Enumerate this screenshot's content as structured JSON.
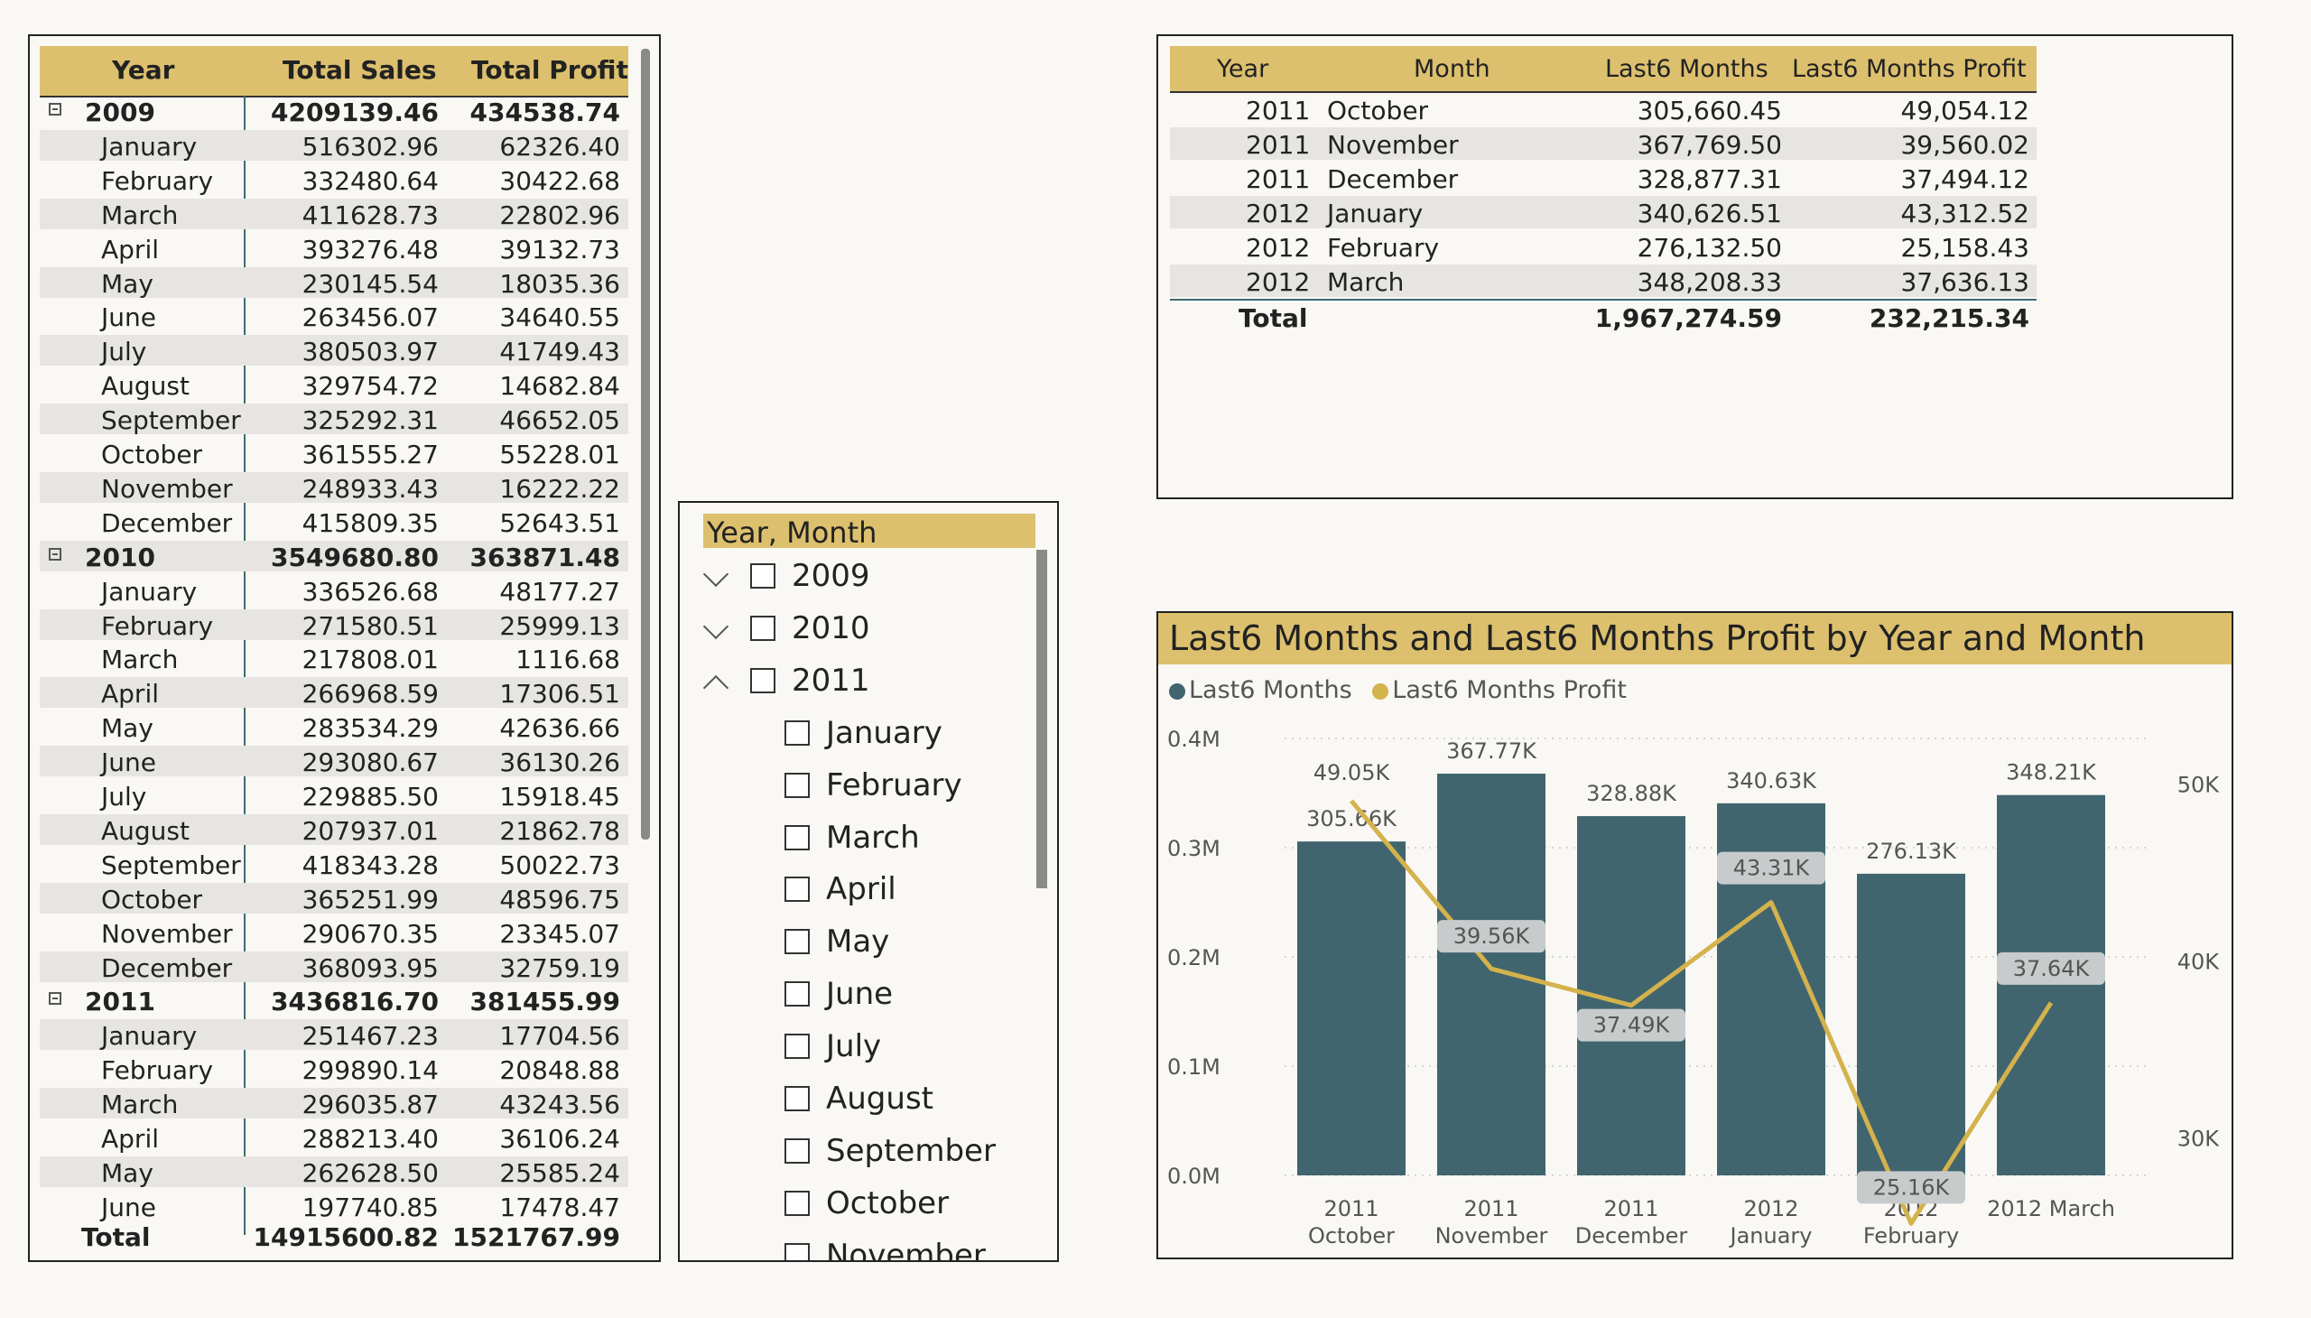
{
  "matrix": {
    "headers": [
      "Year",
      "Total Sales",
      "Total Profit"
    ],
    "groups": [
      {
        "year": "2009",
        "sales": "4209139.46",
        "profit": "434538.74",
        "months": [
          {
            "m": "January",
            "s": "516302.96",
            "p": "62326.40"
          },
          {
            "m": "February",
            "s": "332480.64",
            "p": "30422.68"
          },
          {
            "m": "March",
            "s": "411628.73",
            "p": "22802.96"
          },
          {
            "m": "April",
            "s": "393276.48",
            "p": "39132.73"
          },
          {
            "m": "May",
            "s": "230145.54",
            "p": "18035.36"
          },
          {
            "m": "June",
            "s": "263456.07",
            "p": "34640.55"
          },
          {
            "m": "July",
            "s": "380503.97",
            "p": "41749.43"
          },
          {
            "m": "August",
            "s": "329754.72",
            "p": "14682.84"
          },
          {
            "m": "September",
            "s": "325292.31",
            "p": "46652.05"
          },
          {
            "m": "October",
            "s": "361555.27",
            "p": "55228.01"
          },
          {
            "m": "November",
            "s": "248933.43",
            "p": "16222.22"
          },
          {
            "m": "December",
            "s": "415809.35",
            "p": "52643.51"
          }
        ]
      },
      {
        "year": "2010",
        "sales": "3549680.80",
        "profit": "363871.48",
        "months": [
          {
            "m": "January",
            "s": "336526.68",
            "p": "48177.27"
          },
          {
            "m": "February",
            "s": "271580.51",
            "p": "25999.13"
          },
          {
            "m": "March",
            "s": "217808.01",
            "p": "1116.68"
          },
          {
            "m": "April",
            "s": "266968.59",
            "p": "17306.51"
          },
          {
            "m": "May",
            "s": "283534.29",
            "p": "42636.66"
          },
          {
            "m": "June",
            "s": "293080.67",
            "p": "36130.26"
          },
          {
            "m": "July",
            "s": "229885.50",
            "p": "15918.45"
          },
          {
            "m": "August",
            "s": "207937.01",
            "p": "21862.78"
          },
          {
            "m": "September",
            "s": "418343.28",
            "p": "50022.73"
          },
          {
            "m": "October",
            "s": "365251.99",
            "p": "48596.75"
          },
          {
            "m": "November",
            "s": "290670.35",
            "p": "23345.07"
          },
          {
            "m": "December",
            "s": "368093.95",
            "p": "32759.19"
          }
        ]
      },
      {
        "year": "2011",
        "sales": "3436816.70",
        "profit": "381455.99",
        "months": [
          {
            "m": "January",
            "s": "251467.23",
            "p": "17704.56"
          },
          {
            "m": "February",
            "s": "299890.14",
            "p": "20848.88"
          },
          {
            "m": "March",
            "s": "296035.87",
            "p": "43243.56"
          },
          {
            "m": "April",
            "s": "288213.40",
            "p": "36106.24"
          },
          {
            "m": "May",
            "s": "262628.50",
            "p": "25585.24"
          },
          {
            "m": "June",
            "s": "197740.85",
            "p": "17478.47"
          }
        ]
      }
    ],
    "total": {
      "label": "Total",
      "sales": "14915600.82",
      "profit": "1521767.99"
    }
  },
  "slicer": {
    "title": "Year, Month",
    "years": [
      {
        "label": "2009",
        "expanded": false
      },
      {
        "label": "2010",
        "expanded": false
      },
      {
        "label": "2011",
        "expanded": true
      }
    ],
    "months": [
      "January",
      "February",
      "March",
      "April",
      "May",
      "June",
      "July",
      "August",
      "September",
      "October",
      "November"
    ]
  },
  "table2": {
    "headers": [
      "Year",
      "Month",
      "Last6 Months",
      "Last6 Months Profit"
    ],
    "rows": [
      [
        "2011",
        "October",
        "305,660.45",
        "49,054.12"
      ],
      [
        "2011",
        "November",
        "367,769.50",
        "39,560.02"
      ],
      [
        "2011",
        "December",
        "328,877.31",
        "37,494.12"
      ],
      [
        "2012",
        "January",
        "340,626.51",
        "43,312.52"
      ],
      [
        "2012",
        "February",
        "276,132.50",
        "25,158.43"
      ],
      [
        "2012",
        "March",
        "348,208.33",
        "37,636.13"
      ]
    ],
    "total": [
      "Total",
      "1,967,274.59",
      "232,215.34"
    ]
  },
  "chart_data": {
    "type": "bar",
    "title": "Last6 Months and Last6 Months Profit by Year and Month",
    "legend_position": "top-left",
    "grid": true,
    "categories": [
      [
        "2011",
        "October"
      ],
      [
        "2011",
        "November"
      ],
      [
        "2011",
        "December"
      ],
      [
        "2012",
        "January"
      ],
      [
        "2012",
        "February"
      ],
      [
        "2012 March"
      ]
    ],
    "series": [
      {
        "name": "Last6 Months",
        "kind": "bar",
        "axis": "left",
        "color": "#41656e",
        "values": [
          305660.45,
          367769.5,
          328877.31,
          340626.51,
          276132.5,
          348208.33
        ],
        "labels": [
          "305.66K",
          "367.77K",
          "328.88K",
          "340.63K",
          "276.13K",
          "348.21K"
        ]
      },
      {
        "name": "Last6 Months Profit",
        "kind": "line",
        "axis": "right",
        "color": "#d4b24c",
        "values": [
          49054.12,
          39560.02,
          37494.12,
          43312.52,
          25158.43,
          37636.13
        ],
        "labels": [
          "49.05K",
          "39.56K",
          "37.49K",
          "43.31K",
          "25.16K",
          "37.64K"
        ]
      }
    ],
    "y_left": {
      "min": 0,
      "max": 400000,
      "ticks": [
        "0.0M",
        "0.1M",
        "0.2M",
        "0.3M",
        "0.4M"
      ]
    },
    "y_right": {
      "min": 25000,
      "max": 50000,
      "ticks": [
        "30K",
        "40K",
        "50K"
      ],
      "tick_values": [
        30000,
        40000,
        50000
      ]
    }
  }
}
